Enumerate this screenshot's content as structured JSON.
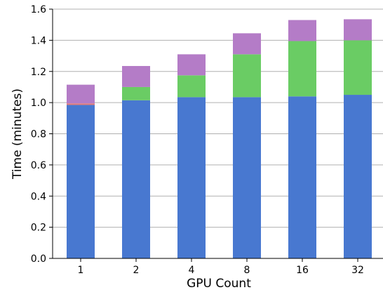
{
  "chart_data": {
    "type": "bar",
    "stacked": true,
    "xlabel": "GPU Count",
    "ylabel": "Time (minutes)",
    "ylim": [
      0,
      1.6
    ],
    "yticks": [
      "0.0",
      "0.2",
      "0.4",
      "0.6",
      "0.8",
      "1.0",
      "1.2",
      "1.4",
      "1.6"
    ],
    "categories": [
      "1",
      "2",
      "4",
      "8",
      "16",
      "32"
    ],
    "grid": "horizontal",
    "legend": "none",
    "series": [
      {
        "color": "#4878d0",
        "values": [
          0.985,
          1.015,
          1.035,
          1.035,
          1.04,
          1.05
        ]
      },
      {
        "color": "#e07a7a",
        "values": [
          0.01,
          0.0,
          0.0,
          0.0,
          0.0,
          0.0
        ]
      },
      {
        "color": "#6acc64",
        "values": [
          0.0,
          0.085,
          0.14,
          0.275,
          0.355,
          0.35
        ]
      },
      {
        "color": "#b47cc7",
        "values": [
          0.12,
          0.135,
          0.135,
          0.135,
          0.135,
          0.135
        ]
      }
    ]
  }
}
